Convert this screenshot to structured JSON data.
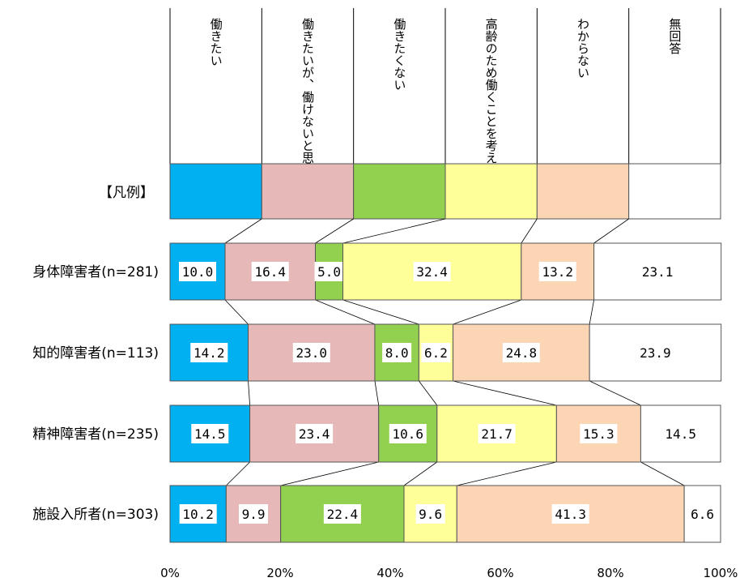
{
  "chart_data": {
    "type": "bar",
    "stacked": "100%",
    "orientation": "horizontal",
    "legend_label": "【凡例】",
    "categories": [
      "身体障害者(n=281)",
      "知的障害者(n=113)",
      "精神障害者(n=235)",
      "施設入所者(n=303)"
    ],
    "series": [
      {
        "name": "働きたい",
        "color": "#00b0f0",
        "values": [
          10.0,
          14.2,
          14.5,
          10.2
        ]
      },
      {
        "name": "働きたいが、働けないと思う",
        "color": "#e6b9b8",
        "values": [
          16.4,
          23.0,
          23.4,
          9.9
        ]
      },
      {
        "name": "働きたくない",
        "color": "#92d050",
        "values": [
          5.0,
          8.0,
          10.6,
          22.4
        ]
      },
      {
        "name": "高齢のため働くことを考えていない",
        "color": "#ffff99",
        "values": [
          32.4,
          6.2,
          21.7,
          9.6
        ]
      },
      {
        "name": "わからない",
        "color": "#fcd5b5",
        "values": [
          13.2,
          24.8,
          15.3,
          41.3
        ]
      },
      {
        "name": "無回答",
        "color": "#ffffff",
        "values": [
          23.1,
          23.9,
          14.5,
          6.6
        ]
      }
    ],
    "xaxis": {
      "ticks": [
        "0%",
        "20%",
        "40%",
        "60%",
        "80%",
        "100%"
      ],
      "range": [
        0,
        100
      ]
    },
    "connector_lines": true,
    "grid": false
  }
}
